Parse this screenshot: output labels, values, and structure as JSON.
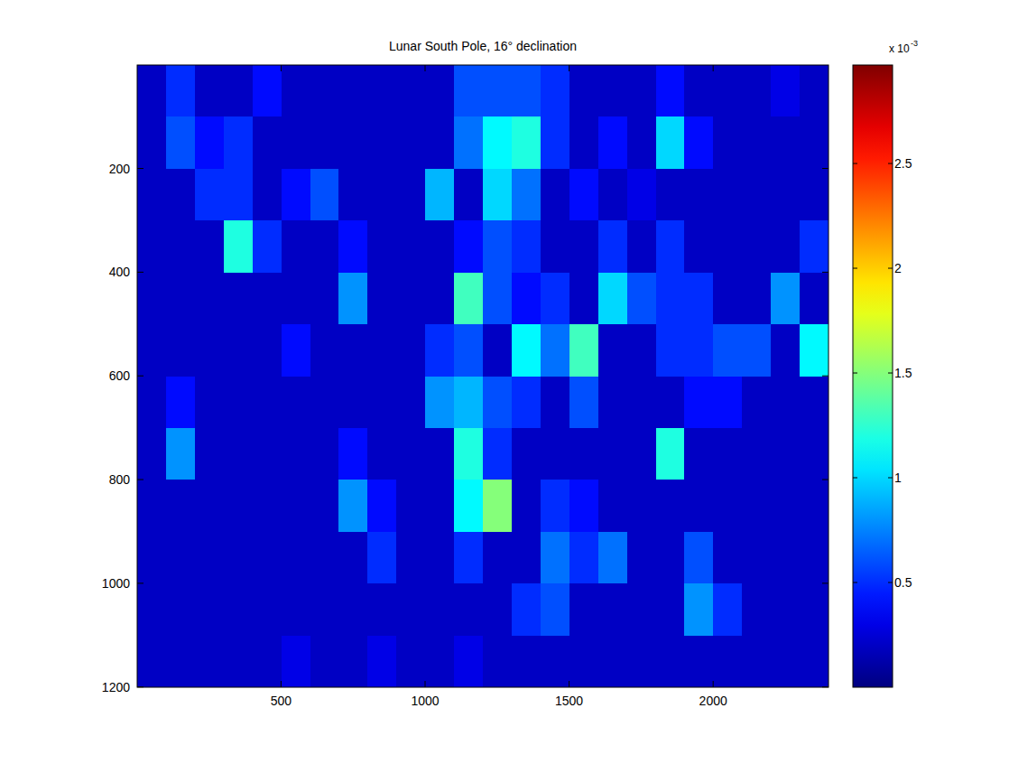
{
  "chart_data": {
    "type": "heatmap",
    "title": "Lunar South Pole, 16° declination",
    "xlim": [
      0.5,
      2400.5
    ],
    "ylim": [
      0.5,
      1200.5
    ],
    "xticks": [
      500,
      1000,
      1500,
      2000
    ],
    "yticks": [
      200,
      400,
      600,
      800,
      1000,
      1200
    ],
    "x_edges": [
      0.5,
      100.5,
      200.5,
      300.5,
      400.5,
      500.5,
      600.5,
      700.5,
      800.5,
      900.5,
      1000.5,
      1100.5,
      1200.5,
      1300.5,
      1400.5,
      1500.5,
      1600.5,
      1700.5,
      1800.5,
      1900.5,
      2000.5,
      2100.5,
      2200.5,
      2300.5,
      2400.5
    ],
    "y_edges": [
      0.5,
      100.5,
      200.5,
      300.5,
      400.5,
      500.5,
      600.5,
      700.5,
      800.5,
      900.5,
      1000.5,
      1100.5,
      1200.5
    ],
    "cells": [
      [
        0.2,
        0.5,
        0.2,
        0.2,
        0.4,
        0.2,
        0.2,
        0.2,
        0.2,
        0.2,
        0.2,
        0.6,
        0.6,
        0.6,
        0.5,
        0.2,
        0.2,
        0.2,
        0.4,
        0.2,
        0.2,
        0.2,
        0.3,
        0.2
      ],
      [
        0.2,
        0.6,
        0.4,
        0.5,
        0.2,
        0.2,
        0.2,
        0.2,
        0.2,
        0.2,
        0.2,
        0.7,
        1.1,
        1.2,
        0.5,
        0.2,
        0.4,
        0.2,
        1.0,
        0.4,
        0.2,
        0.2,
        0.2,
        0.2
      ],
      [
        0.2,
        0.2,
        0.5,
        0.5,
        0.2,
        0.4,
        0.6,
        0.2,
        0.2,
        0.2,
        0.9,
        0.2,
        1.0,
        0.7,
        0.2,
        0.4,
        0.2,
        0.3,
        0.2,
        0.2,
        0.2,
        0.2,
        0.2,
        0.2
      ],
      [
        0.2,
        0.2,
        0.2,
        1.2,
        0.5,
        0.2,
        0.2,
        0.4,
        0.2,
        0.2,
        0.2,
        0.4,
        0.6,
        0.5,
        0.2,
        0.2,
        0.5,
        0.2,
        0.5,
        0.2,
        0.2,
        0.2,
        0.2,
        0.5
      ],
      [
        0.2,
        0.2,
        0.2,
        0.2,
        0.2,
        0.2,
        0.2,
        0.8,
        0.2,
        0.2,
        0.2,
        1.3,
        0.6,
        0.4,
        0.5,
        0.2,
        1.0,
        0.6,
        0.5,
        0.5,
        0.2,
        0.2,
        0.8,
        0.2
      ],
      [
        0.2,
        0.2,
        0.2,
        0.2,
        0.2,
        0.4,
        0.2,
        0.2,
        0.2,
        0.2,
        0.5,
        0.6,
        0.2,
        1.1,
        0.7,
        1.3,
        0.2,
        0.2,
        0.5,
        0.5,
        0.6,
        0.6,
        0.2,
        1.1
      ],
      [
        0.2,
        0.4,
        0.2,
        0.2,
        0.2,
        0.2,
        0.2,
        0.2,
        0.2,
        0.2,
        0.8,
        0.9,
        0.6,
        0.5,
        0.2,
        0.6,
        0.2,
        0.2,
        0.2,
        0.4,
        0.4,
        0.2,
        0.2,
        0.2
      ],
      [
        0.2,
        0.8,
        0.2,
        0.2,
        0.2,
        0.2,
        0.2,
        0.4,
        0.2,
        0.2,
        0.2,
        1.2,
        0.5,
        0.2,
        0.2,
        0.2,
        0.2,
        0.2,
        1.2,
        0.2,
        0.2,
        0.2,
        0.2,
        0.2
      ],
      [
        0.2,
        0.2,
        0.2,
        0.2,
        0.2,
        0.2,
        0.2,
        0.8,
        0.4,
        0.2,
        0.2,
        1.1,
        1.5,
        0.2,
        0.5,
        0.4,
        0.2,
        0.2,
        0.2,
        0.2,
        0.2,
        0.2,
        0.2,
        0.2
      ],
      [
        0.2,
        0.2,
        0.2,
        0.2,
        0.2,
        0.2,
        0.2,
        0.2,
        0.5,
        0.2,
        0.2,
        0.5,
        0.2,
        0.2,
        0.7,
        0.5,
        0.7,
        0.2,
        0.2,
        0.6,
        0.2,
        0.2,
        0.2,
        0.2
      ],
      [
        0.2,
        0.2,
        0.2,
        0.2,
        0.2,
        0.2,
        0.2,
        0.2,
        0.2,
        0.2,
        0.2,
        0.2,
        0.2,
        0.5,
        0.6,
        0.2,
        0.2,
        0.2,
        0.2,
        0.8,
        0.5,
        0.2,
        0.2,
        0.2
      ],
      [
        0.2,
        0.2,
        0.2,
        0.2,
        0.2,
        0.3,
        0.2,
        0.2,
        0.3,
        0.2,
        0.2,
        0.3,
        0.2,
        0.2,
        0.2,
        0.2,
        0.2,
        0.2,
        0.2,
        0.2,
        0.2,
        0.2,
        0.2,
        0.2
      ]
    ],
    "colorbar": {
      "lim": [
        0,
        2.97
      ],
      "ticks": [
        0.5,
        1,
        1.5,
        2,
        2.5
      ],
      "scale_label": "x 10",
      "scale_exponent": "-3"
    }
  }
}
